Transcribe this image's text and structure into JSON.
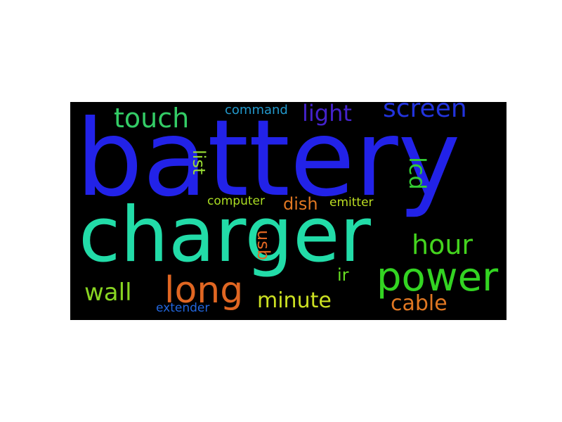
{
  "words": {
    "battery": {
      "text": "battery",
      "color": "#2222e8"
    },
    "charger": {
      "text": "charger",
      "color": "#22dca8"
    },
    "power": {
      "text": "power",
      "color": "#33d422"
    },
    "long": {
      "text": "long",
      "color": "#e06622"
    },
    "screen": {
      "text": "screen",
      "color": "#2233dd"
    },
    "touch": {
      "text": "touch",
      "color": "#33cc66"
    },
    "light": {
      "text": "light",
      "color": "#4422cc"
    },
    "hour": {
      "text": "hour",
      "color": "#44d41e"
    },
    "wall": {
      "text": "wall",
      "color": "#88d422"
    },
    "cable": {
      "text": "cable",
      "color": "#e07722"
    },
    "minute": {
      "text": "minute",
      "color": "#cce022"
    },
    "lcd": {
      "text": "lcd",
      "color": "#33cc33"
    },
    "list": {
      "text": "list",
      "color": "#99dd33"
    },
    "usb": {
      "text": "usb",
      "color": "#e06622"
    },
    "dish": {
      "text": "dish",
      "color": "#e07722"
    },
    "ir": {
      "text": "ir",
      "color": "#66dd22"
    },
    "command": {
      "text": "command",
      "color": "#2299cc"
    },
    "computer": {
      "text": "computer",
      "color": "#aadd22"
    },
    "emitter": {
      "text": "emitter",
      "color": "#bbdd22"
    },
    "extender": {
      "text": "extender",
      "color": "#2266dd"
    }
  }
}
